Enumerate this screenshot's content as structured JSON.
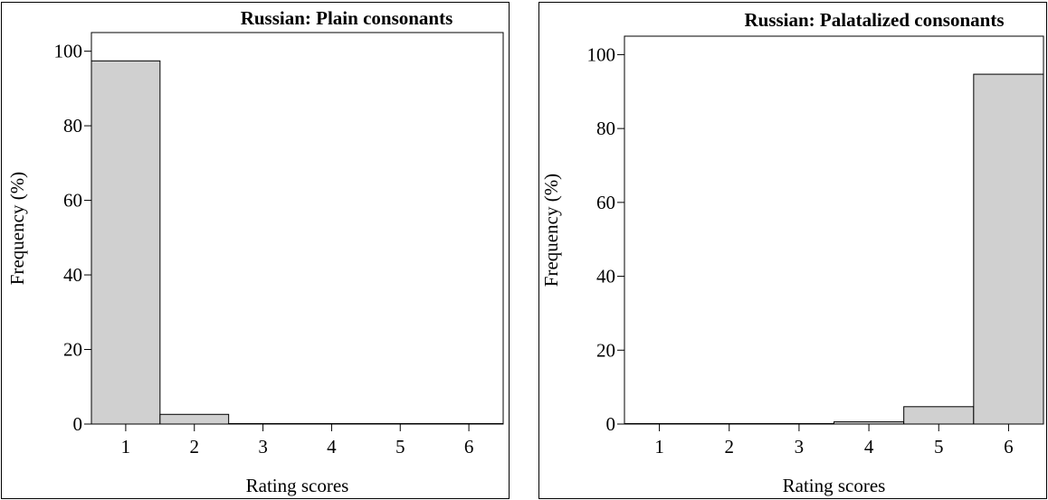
{
  "chart_data": [
    {
      "type": "bar",
      "title": "Russian: Plain consonants",
      "xlabel": "Rating scores",
      "ylabel": "Frequency (%)",
      "categories": [
        "1",
        "2",
        "3",
        "4",
        "5",
        "6"
      ],
      "values": [
        97.4,
        2.6,
        0,
        0,
        0,
        0
      ],
      "ylim": [
        0,
        105
      ],
      "yticks": [
        0,
        20,
        40,
        60,
        80,
        100
      ],
      "bar_color": "#d0d0d0",
      "grid": false
    },
    {
      "type": "bar",
      "title": "Russian: Palatalized consonants",
      "xlabel": "Rating scores",
      "ylabel": "Frequency (%)",
      "categories": [
        "1",
        "2",
        "3",
        "4",
        "5",
        "6"
      ],
      "values": [
        0,
        0,
        0,
        0.6,
        4.7,
        94.7
      ],
      "ylim": [
        0,
        105
      ],
      "yticks": [
        0,
        20,
        40,
        60,
        80,
        100
      ],
      "bar_color": "#d0d0d0",
      "grid": false
    }
  ]
}
